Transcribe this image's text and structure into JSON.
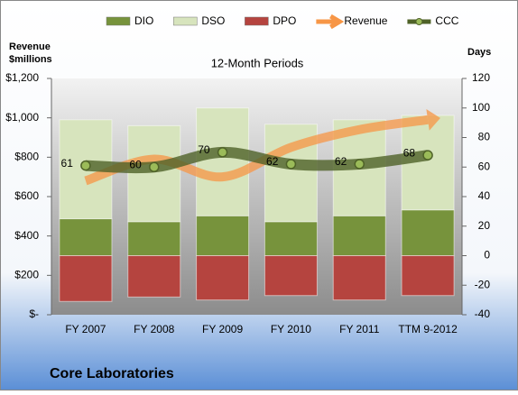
{
  "chart_data": {
    "type": "bar",
    "title": "Core Laboratories",
    "subtitle": "12-Month Periods",
    "y_label": "Revenue $millions",
    "y2_label": "Days",
    "categories": [
      "FY 2007",
      "FY 2008",
      "FY 2009",
      "FY 2010",
      "FY 2011",
      "TTM 9-2012"
    ],
    "series": [
      {
        "name": "DIO",
        "type": "bar",
        "axis": "y2",
        "color": "#77933c",
        "values": [
          25,
          23,
          27,
          23,
          27,
          31
        ]
      },
      {
        "name": "DSO",
        "type": "bar",
        "axis": "y2",
        "color": "#d7e4bd",
        "values": [
          67,
          65,
          73,
          66,
          65,
          64
        ]
      },
      {
        "name": "DPO",
        "type": "bar",
        "axis": "y2",
        "color": "#b5443f",
        "values": [
          -31,
          -28,
          -30,
          -27,
          -30,
          -27
        ]
      },
      {
        "name": "Revenue",
        "type": "line",
        "axis": "y",
        "color": "#f79646",
        "values": [
          680,
          790,
          700,
          850,
          940,
          990
        ]
      },
      {
        "name": "CCC",
        "type": "line",
        "axis": "y2",
        "color": "#4f6228",
        "values": [
          61,
          60,
          70,
          62,
          62,
          68
        ]
      }
    ],
    "ylim": [
      0,
      1200
    ],
    "yticks": [
      {
        "value": 0,
        "label": "$-"
      },
      {
        "value": 200,
        "label": "$200"
      },
      {
        "value": 400,
        "label": "$400"
      },
      {
        "value": 600,
        "label": "$600"
      },
      {
        "value": 800,
        "label": "$800"
      },
      {
        "value": 1000,
        "label": "$1,000"
      },
      {
        "value": 1200,
        "label": "$1,200"
      }
    ],
    "y2lim": [
      -40,
      120
    ],
    "y2ticks": [
      -40,
      -20,
      0,
      20,
      40,
      60,
      80,
      100,
      120
    ]
  }
}
